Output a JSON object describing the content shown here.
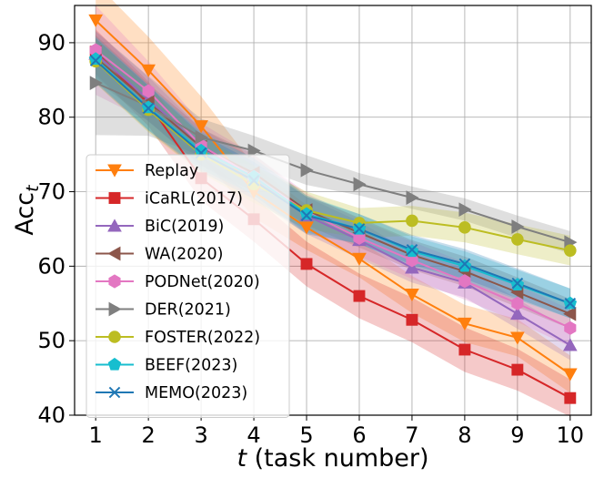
{
  "chart_data": {
    "type": "line",
    "x": [
      1,
      2,
      3,
      4,
      5,
      6,
      7,
      8,
      9,
      10
    ],
    "xticks": [
      "1",
      "2",
      "3",
      "4",
      "5",
      "6",
      "7",
      "8",
      "9",
      "10"
    ],
    "yticks": [
      "40",
      "50",
      "60",
      "70",
      "80",
      "90"
    ],
    "ylim": [
      40,
      95
    ],
    "xlim": [
      0.6,
      10.4
    ],
    "grid": true,
    "xlabel_italic": "t",
    "xlabel_rest": " (task number)",
    "ylabel_main": "Acc",
    "ylabel_sub": "t",
    "legend_position": "left",
    "series": [
      {
        "name": "Replay",
        "color": "#ff7f0e",
        "marker": "triangle-down",
        "values": [
          93.0,
          86.3,
          78.8,
          70.0,
          65.2,
          61.0,
          56.2,
          52.3,
          50.4,
          45.5
        ],
        "band": [
          5.0,
          4.5,
          4.0,
          3.5,
          3.0,
          2.5,
          2.5,
          2.5,
          2.5,
          2.5
        ]
      },
      {
        "name": "iCaRL(2017)",
        "color": "#d62728",
        "marker": "square",
        "values": [
          88.8,
          81.8,
          71.8,
          66.3,
          60.3,
          56.0,
          52.8,
          48.8,
          46.1,
          42.3
        ],
        "band": [
          3.0,
          3.0,
          3.0,
          3.0,
          3.0,
          3.0,
          3.0,
          3.0,
          2.8,
          2.5
        ]
      },
      {
        "name": "BiC(2019)",
        "color": "#9467bd",
        "marker": "triangle-up",
        "values": [
          88.5,
          82.4,
          76.0,
          72.0,
          66.8,
          63.5,
          59.8,
          57.8,
          53.6,
          49.4
        ],
        "band": [
          3.0,
          3.0,
          2.5,
          2.5,
          2.5,
          2.5,
          2.0,
          2.0,
          2.0,
          2.0
        ]
      },
      {
        "name": "WA(2020)",
        "color": "#8c564b",
        "marker": "triangle-left",
        "values": [
          88.0,
          82.0,
          76.0,
          72.5,
          67.5,
          64.5,
          61.5,
          59.3,
          56.5,
          53.6
        ],
        "band": [
          3.0,
          2.5,
          2.5,
          2.5,
          2.0,
          2.0,
          2.0,
          2.0,
          2.0,
          2.0
        ]
      },
      {
        "name": "PODNet(2020)",
        "color": "#e377c2",
        "marker": "hexagon",
        "values": [
          89.0,
          83.5,
          76.2,
          72.0,
          67.3,
          63.8,
          60.8,
          58.0,
          55.0,
          51.7
        ],
        "band": [
          6.0,
          4.0,
          3.0,
          3.0,
          2.5,
          2.5,
          2.5,
          2.5,
          2.5,
          2.5
        ]
      },
      {
        "name": "DER(2021)",
        "color": "#7f7f7f",
        "marker": "triangle-right",
        "values": [
          84.6,
          81.5,
          77.3,
          75.5,
          72.9,
          71.0,
          69.2,
          67.6,
          65.3,
          63.2
        ],
        "band": [
          7.0,
          4.0,
          2.5,
          2.0,
          2.0,
          1.5,
          1.5,
          1.5,
          1.5,
          1.5
        ]
      },
      {
        "name": "FOSTER(2022)",
        "color": "#bcbd22",
        "marker": "circle",
        "values": [
          87.5,
          81.0,
          75.0,
          71.0,
          67.5,
          65.8,
          66.1,
          65.2,
          63.6,
          62.1
        ],
        "band": [
          3.0,
          3.0,
          2.5,
          2.5,
          2.5,
          2.0,
          2.0,
          2.0,
          2.0,
          2.0
        ]
      },
      {
        "name": "BEEF(2023)",
        "color": "#17becf",
        "marker": "pentagon",
        "values": [
          87.8,
          81.3,
          75.5,
          72.0,
          67.0,
          65.0,
          62.0,
          60.0,
          57.5,
          55.0
        ],
        "band": [
          3.0,
          3.0,
          2.5,
          2.5,
          2.5,
          2.0,
          2.0,
          2.0,
          2.0,
          2.0
        ]
      },
      {
        "name": "MEMO(2023)",
        "color": "#1f77b4",
        "marker": "x",
        "values": [
          87.6,
          81.2,
          75.2,
          71.5,
          66.8,
          65.0,
          62.2,
          60.3,
          57.7,
          55.0
        ],
        "band": [
          3.0,
          3.0,
          2.5,
          2.5,
          2.5,
          2.0,
          2.0,
          2.0,
          2.0,
          2.0
        ]
      }
    ]
  }
}
